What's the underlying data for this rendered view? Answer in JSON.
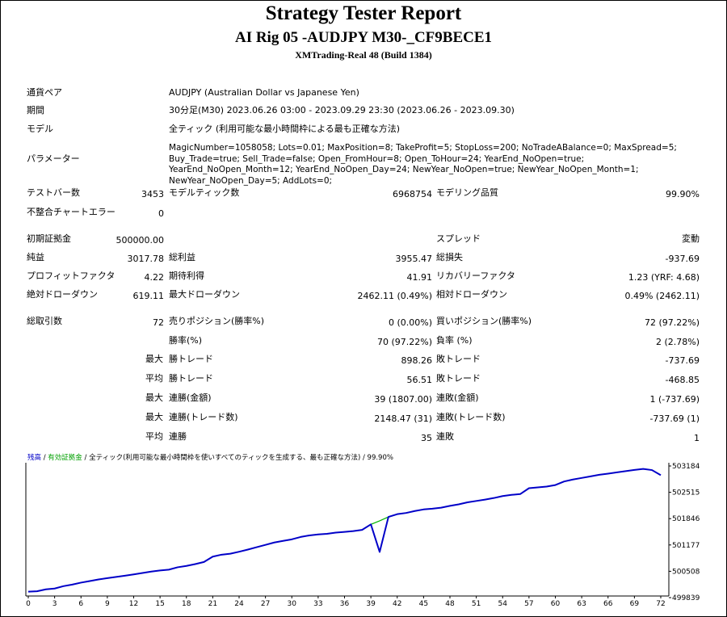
{
  "header": {
    "title": "Strategy Tester Report",
    "subtitle": "AI Rig 05 -AUDJPY M30-_CF9BECE1",
    "server": "XMTrading-Real 48 (Build 1384)"
  },
  "info": {
    "symbol_label": "通貨ペア",
    "symbol_value": "AUDJPY (Australian Dollar vs Japanese Yen)",
    "period_label": "期間",
    "period_value": "30分足(M30) 2023.06.26 03:00 - 2023.09.29 23:30 (2023.06.26 - 2023.09.30)",
    "model_label": "モデル",
    "model_value": "全ティック (利用可能な最小時間枠による最も正確な方法)",
    "params_label": "パラメーター",
    "params_value": "MagicNumber=1058058; Lots=0.01; MaxPosition=8; TakeProfit=5; StopLoss=200; NoTradeABalance=0; MaxSpread=5; Buy_Trade=true; Sell_Trade=false; Open_FromHour=8; Open_ToHour=24; YearEnd_NoOpen=true; YearEnd_NoOpen_Month=12; YearEnd_NoOpen_Day=24; NewYear_NoOpen=true; NewYear_NoOpen_Month=1; NewYear_NoOpen_Day=5; AddLots=0;"
  },
  "stats": {
    "bars_label": "テストバー数",
    "bars_value": "3453",
    "ticks_label": "モデルティック数",
    "ticks_value": "6968754",
    "quality_label": "モデリング品質",
    "quality_value": "99.90%",
    "mismatch_label": "不整合チャートエラー",
    "mismatch_value": "0",
    "deposit_label": "初期証拠金",
    "deposit_value": "500000.00",
    "spread_label": "スプレッド",
    "spread_value": "変動",
    "net_label": "純益",
    "net_value": "3017.78",
    "gross_profit_label": "総利益",
    "gross_profit_value": "3955.47",
    "gross_loss_label": "総損失",
    "gross_loss_value": "-937.69",
    "pf_label": "プロフィットファクタ",
    "pf_value": "4.22",
    "expected_label": "期待利得",
    "expected_value": "41.91",
    "recovery_label": "リカバリーファクタ",
    "recovery_value": "1.23 (YRF: 4.68)",
    "abs_dd_label": "絶対ドローダウン",
    "abs_dd_value": "619.11",
    "max_dd_label": "最大ドローダウン",
    "max_dd_value": "2462.11 (0.49%)",
    "rel_dd_label": "相対ドローダウン",
    "rel_dd_value": "0.49% (2462.11)",
    "total_label": "総取引数",
    "total_value": "72",
    "short_label": "売りポジション(勝率%)",
    "short_value": "0 (0.00%)",
    "long_label": "買いポジション(勝率%)",
    "long_value": "72 (97.22%)",
    "win_rate_label": "勝率(%)",
    "win_rate_value": "70 (97.22%)",
    "loss_rate_label": "負率 (%)",
    "loss_rate_value": "2 (2.78%)",
    "max_label": "最大",
    "avg_label": "平均",
    "largest_win_label": "勝トレード",
    "largest_win_value": "898.26",
    "largest_loss_label": "敗トレード",
    "largest_loss_value": "-737.69",
    "avg_win_label": "勝トレード",
    "avg_win_value": "56.51",
    "avg_loss_label": "敗トレード",
    "avg_loss_value": "-468.85",
    "max_cons_wins_label": "連勝(金額)",
    "max_cons_wins_value": "39 (1807.00)",
    "max_cons_losses_label": "連敗(金額)",
    "max_cons_losses_value": "1 (-737.69)",
    "max_cons_profit_label": "連勝(トレード数)",
    "max_cons_profit_value": "2148.47 (31)",
    "max_cons_loss_label": "連敗(トレード数)",
    "max_cons_loss_value": "-737.69 (1)",
    "avg_cons_wins_label": "連勝",
    "avg_cons_wins_value": "35",
    "avg_cons_losses_label": "連敗",
    "avg_cons_losses_value": "1"
  },
  "graph_legend": {
    "balance": "残高",
    "sep1": " / ",
    "equity": "有効証拠金",
    "sep2": " / ",
    "rest": "全ティック(利用可能な最小時間枠を使いすべてのティックを生成する、最も正確な方法) / 99.90%"
  },
  "chart_data": {
    "type": "line",
    "x_ticks": [
      "0",
      "3",
      "6",
      "9",
      "12",
      "15",
      "18",
      "21",
      "24",
      "27",
      "30",
      "33",
      "36",
      "39",
      "42",
      "45",
      "48",
      "51",
      "54",
      "57",
      "60",
      "63",
      "66",
      "69",
      "72"
    ],
    "y_ticks": [
      "503184",
      "502515",
      "501846",
      "501177",
      "500508",
      "499839"
    ],
    "ylim": [
      499839,
      503352
    ],
    "xlim": [
      0,
      72
    ],
    "colors": {
      "balance": "#0000c8",
      "equity": "#00b400"
    },
    "series": [
      {
        "name": "残高",
        "x": [
          0,
          1,
          2,
          3,
          4,
          5,
          6,
          7,
          8,
          9,
          10,
          11,
          12,
          13,
          14,
          15,
          16,
          17,
          18,
          19,
          20,
          21,
          22,
          23,
          24,
          25,
          26,
          27,
          28,
          29,
          30,
          31,
          32,
          33,
          34,
          35,
          36,
          37,
          38,
          39,
          40,
          41,
          42,
          43,
          44,
          45,
          46,
          47,
          48,
          49,
          50,
          51,
          52,
          53,
          54,
          55,
          56,
          57,
          58,
          59,
          60,
          61,
          62,
          63,
          64,
          65,
          66,
          69,
          70,
          71,
          72
        ],
        "y": [
          499990,
          500000,
          500050,
          500070,
          500130,
          500170,
          500220,
          500260,
          500300,
          500335,
          500365,
          500395,
          500430,
          500465,
          500500,
          500530,
          500550,
          500610,
          500645,
          500690,
          500745,
          500880,
          500930,
          500955,
          501005,
          501060,
          501120,
          501180,
          501240,
          501280,
          501320,
          501380,
          501420,
          501445,
          501460,
          501490,
          501510,
          501530,
          501560,
          501700,
          501000,
          501890,
          501960,
          501990,
          502040,
          502080,
          502100,
          502125,
          502170,
          502210,
          502260,
          502295,
          502330,
          502370,
          502420,
          502450,
          502470,
          502620,
          502640,
          502660,
          502700,
          502790,
          502840,
          502880,
          502920,
          502960,
          502990,
          503085,
          503110,
          503080,
          502950
        ]
      }
    ]
  }
}
